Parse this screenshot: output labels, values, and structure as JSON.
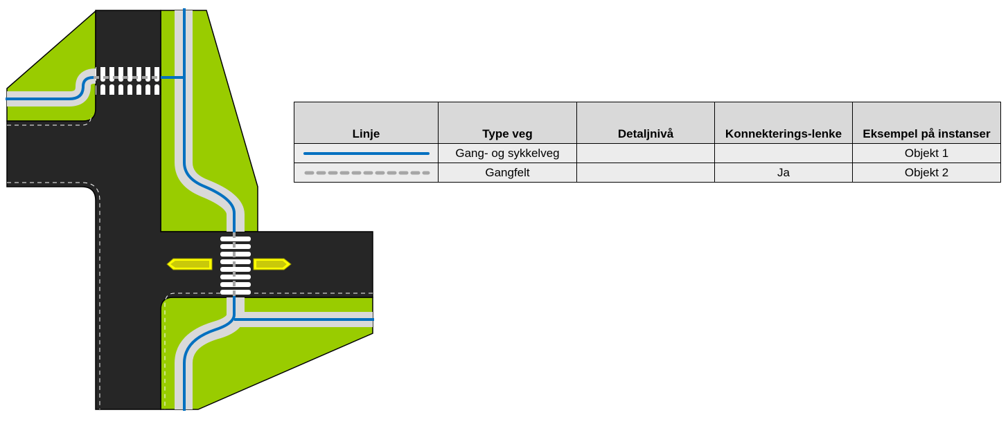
{
  "table": {
    "headers": [
      "Linje",
      "Type veg",
      "Detaljnivå",
      "Konnekterings-lenke",
      "Eksempel på instanser"
    ],
    "rows": [
      {
        "line_style": "solid",
        "line_color": "#0070c0",
        "type_veg": "Gang- og sykkelveg",
        "detaljniva": "",
        "konnekteringslenke": "",
        "eksempel": "Objekt 1"
      },
      {
        "line_style": "dashed",
        "line_color": "#a6a6a6",
        "type_veg": "Gangfelt",
        "detaljniva": "",
        "konnekteringslenke": "Ja",
        "eksempel": "Objekt 2"
      }
    ]
  },
  "colors": {
    "road": "#262626",
    "grass": "#99cc00",
    "sidewalk": "#d9d9d9",
    "walkway_line": "#0070c0",
    "crossing_line": "#a6a6a6",
    "island": "#ffff00"
  }
}
